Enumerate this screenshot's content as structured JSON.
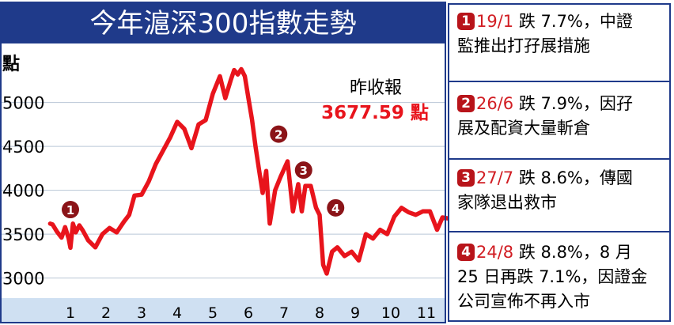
{
  "chart_data": {
    "type": "line",
    "title": "今年滬深300指數走勢",
    "ylabel": "點",
    "ylim": [
      2780,
      5700
    ],
    "yticks": [
      3000,
      3500,
      4000,
      4500,
      5000
    ],
    "xlim": [
      0.4,
      12.0
    ],
    "x_tick_labels": [
      "1",
      "2",
      "3",
      "4",
      "5",
      "6",
      "7",
      "8",
      "9",
      "10",
      "11"
    ],
    "last_close_label": "昨收報",
    "last_close_value": "3677.59 點",
    "line_color": "#e8141c",
    "series": [
      {
        "x": [
          0.43,
          0.5,
          0.62,
          0.75,
          0.85,
          0.95,
          1.0,
          1.07,
          1.15,
          1.25,
          1.35,
          1.5,
          1.7,
          1.9,
          2.1,
          2.3,
          2.5,
          2.65,
          2.8,
          3.0,
          3.2,
          3.4,
          3.6,
          3.8,
          4.0,
          4.2,
          4.4,
          4.6,
          4.8,
          5.0,
          5.2,
          5.35,
          5.5,
          5.6,
          5.7,
          5.8,
          5.9,
          6.0,
          6.1,
          6.2,
          6.3,
          6.4,
          6.5,
          6.6,
          6.75,
          6.9,
          7.1,
          7.25,
          7.4,
          7.5,
          7.6,
          7.75,
          7.9,
          8.0,
          8.1,
          8.2,
          8.35,
          8.5,
          8.7,
          8.9,
          9.1,
          9.3,
          9.5,
          9.7,
          9.9,
          10.1,
          10.3,
          10.5,
          10.7,
          10.9,
          11.1,
          11.3,
          11.45,
          11.6
        ],
        "y": [
          3620,
          3610,
          3530,
          3460,
          3580,
          3450,
          3345,
          3620,
          3520,
          3600,
          3540,
          3430,
          3350,
          3500,
          3570,
          3520,
          3640,
          3720,
          3940,
          3950,
          4100,
          4300,
          4450,
          4600,
          4780,
          4700,
          4480,
          4750,
          4800,
          5100,
          5300,
          5050,
          5250,
          5370,
          5320,
          5380,
          5300,
          5050,
          4810,
          4500,
          4230,
          3970,
          4220,
          3620,
          4000,
          4150,
          4330,
          3760,
          4070,
          3760,
          4050,
          4050,
          3800,
          3720,
          3150,
          3050,
          3300,
          3350,
          3250,
          3300,
          3200,
          3500,
          3450,
          3550,
          3500,
          3700,
          3800,
          3750,
          3720,
          3760,
          3760,
          3550,
          3690,
          3680
        ]
      }
    ],
    "annotations": [
      {
        "label": "1",
        "x": 1.0,
        "y": 3780
      },
      {
        "label": "2",
        "x": 6.85,
        "y": 4640
      },
      {
        "label": "3",
        "x": 7.55,
        "y": 4230
      },
      {
        "label": "4",
        "x": 8.45,
        "y": 3800
      }
    ]
  },
  "notes": [
    {
      "num": "1",
      "date": "19/1",
      "text_line1": "跌 7.7%，中證",
      "text_line2": "監推出打孖展措施"
    },
    {
      "num": "2",
      "date": "26/6",
      "text_line1": "跌 7.9%，因孖",
      "text_line2": "展及配資大量斬倉"
    },
    {
      "num": "3",
      "date": "27/7",
      "text_line1": "跌 8.6%，傳國",
      "text_line2": "家隊退出救市"
    },
    {
      "num": "4",
      "date": "24/8",
      "text_line1": "跌 8.8%，8 月",
      "text_line2": "25 日再跌 7.1%，因證金",
      "text_line3": "公司宣佈不再入市"
    }
  ]
}
